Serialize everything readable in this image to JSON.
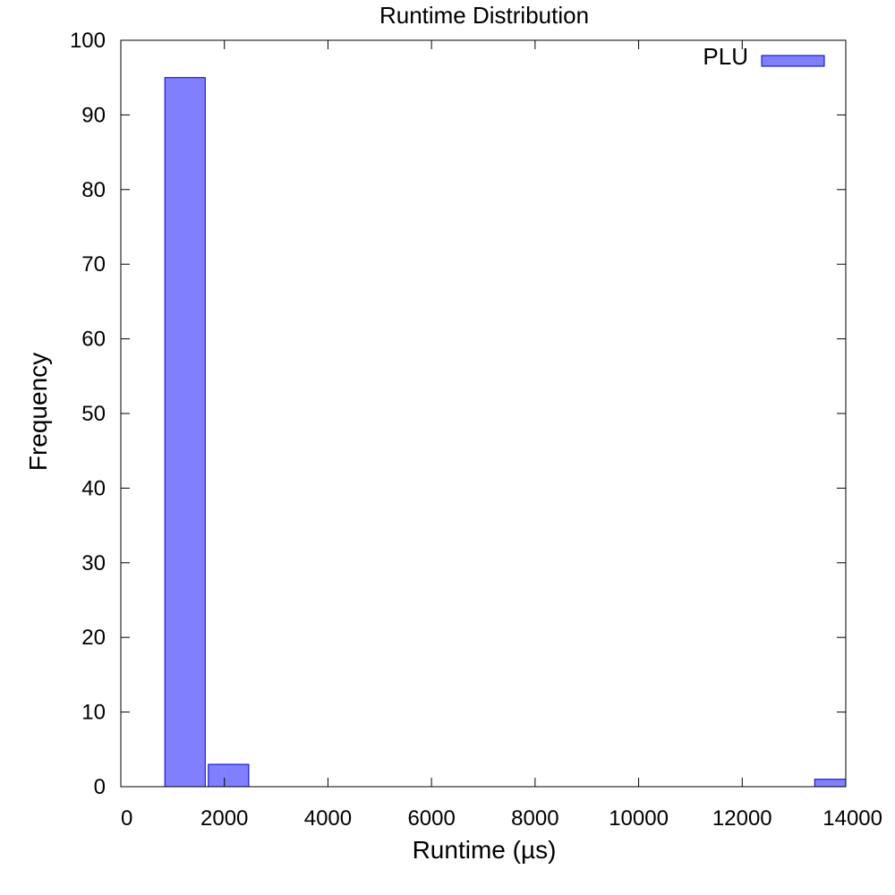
{
  "chart_data": {
    "type": "bar",
    "title": "Runtime Distribution",
    "xlabel": "Runtime (µs)",
    "ylabel": "Frequency",
    "xlim": [
      0,
      14000
    ],
    "ylim": [
      0,
      100
    ],
    "x_ticks": [
      0,
      2000,
      4000,
      6000,
      8000,
      10000,
      12000,
      14000
    ],
    "y_ticks": [
      0,
      10,
      20,
      30,
      40,
      50,
      60,
      70,
      80,
      90,
      100
    ],
    "grid": false,
    "legend_position": "top-right",
    "series": [
      {
        "name": "PLU",
        "color": "#8080ff",
        "edge_color": "#0000cc",
        "bins": [
          {
            "x0": 850,
            "x1": 1630,
            "value": 95
          },
          {
            "x0": 1690,
            "x1": 2470,
            "value": 3
          },
          {
            "x0": 13400,
            "x1": 14000,
            "value": 1
          }
        ]
      }
    ]
  }
}
